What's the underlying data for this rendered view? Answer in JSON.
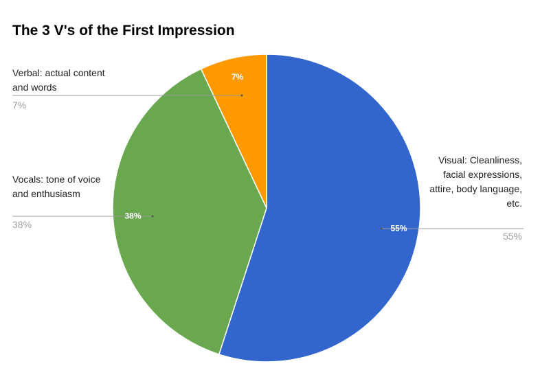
{
  "chart_data": {
    "type": "pie",
    "title": "The 3 V's of the First Impression",
    "categories": [
      "Visual: Cleanliness, facial expressions, attire, body language, etc.",
      "Vocals: tone of voice and enthusiasm",
      "Verbal: actual content and words"
    ],
    "values": [
      55,
      38,
      7
    ],
    "value_labels": [
      "55%",
      "38%",
      "7%"
    ],
    "colors": [
      "#3366cc",
      "#6aa84f",
      "#ff9900"
    ]
  }
}
